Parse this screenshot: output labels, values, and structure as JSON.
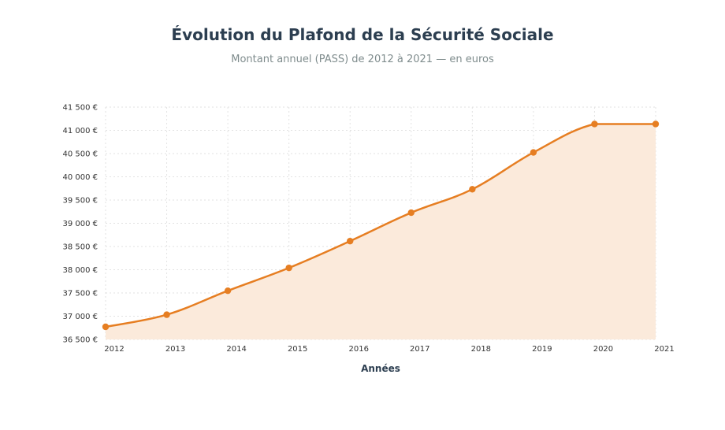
{
  "chart_data": {
    "type": "area",
    "title": "Évolution du Plafond de la Sécurité Sociale",
    "subtitle": "Montant annuel (PASS) de 2012 à 2021 — en euros",
    "xlabel": "Années",
    "ylabel": "",
    "x": [
      "2012",
      "2013",
      "2014",
      "2015",
      "2016",
      "2017",
      "2018",
      "2019",
      "2020",
      "2021"
    ],
    "series": [
      {
        "values": [
          36372,
          37032,
          37548,
          38040,
          38616,
          39228,
          39732,
          40524,
          41136,
          41136
        ]
      }
    ],
    "yticks": [
      36500,
      37000,
      37500,
      38000,
      38500,
      39000,
      39500,
      40000,
      40500,
      41000,
      41500
    ],
    "ytick_labels": [
      "36 500 €",
      "37 000 €",
      "37 500 €",
      "38 000 €",
      "38 500 €",
      "39 000 €",
      "39 500 €",
      "40 000 €",
      "40 500 €",
      "41 000 €",
      "41 500 €"
    ],
    "ylim": [
      36500,
      41500
    ],
    "grid": true,
    "legend": "none",
    "colors": {
      "line": "#e67e22",
      "fill": "#fbeadb",
      "grid": "#e2e2e2",
      "title": "#2c3e50",
      "subtitle": "#7f8c8d"
    }
  }
}
